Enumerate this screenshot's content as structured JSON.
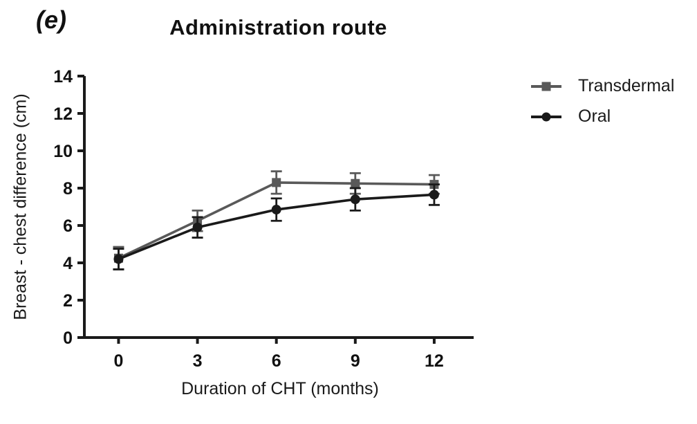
{
  "panel_label": "(e)",
  "chart_data": {
    "type": "line",
    "title": "Administration route",
    "xlabel": "Duration of CHT (months)",
    "ylabel": "Breast - chest difference (cm)",
    "x": [
      0,
      3,
      6,
      9,
      12
    ],
    "xticks": [
      0,
      3,
      6,
      9,
      12
    ],
    "yticks": [
      0,
      2,
      4,
      6,
      8,
      10,
      12,
      14
    ],
    "xlim": [
      -1.3,
      13.5
    ],
    "ylim": [
      0,
      14
    ],
    "grid": false,
    "legend_position": "right",
    "axis_color": "#1a1a1a",
    "series": [
      {
        "name": "Transdermal",
        "marker": "square",
        "color": "#595959",
        "values": [
          4.25,
          6.25,
          8.3,
          8.25,
          8.2
        ],
        "errors": [
          0.6,
          0.55,
          0.6,
          0.55,
          0.5
        ]
      },
      {
        "name": "Oral",
        "marker": "circle",
        "color": "#1a1a1a",
        "values": [
          4.2,
          5.9,
          6.85,
          7.4,
          7.65
        ],
        "errors": [
          0.55,
          0.55,
          0.6,
          0.6,
          0.55
        ]
      }
    ]
  }
}
